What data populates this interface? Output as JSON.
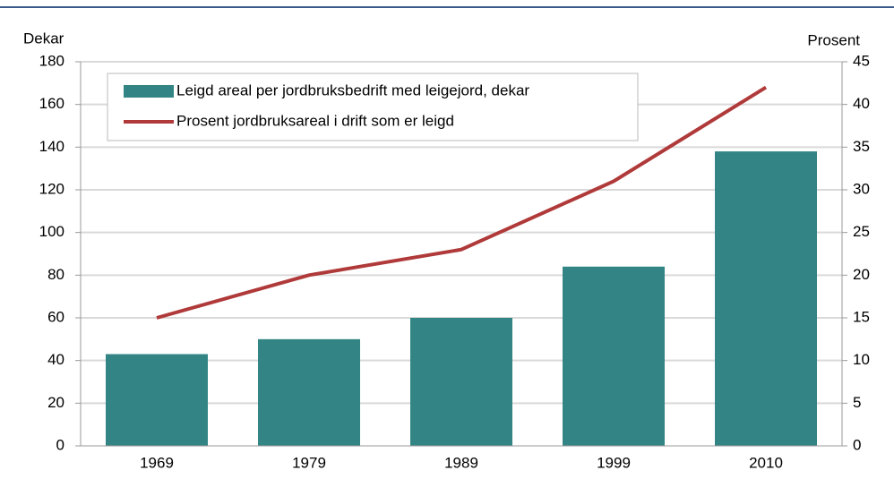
{
  "chart_data": {
    "type": "bar",
    "y_label": "Dekar",
    "y2_label": "Prosent",
    "categories": [
      "1969",
      "1979",
      "1989",
      "1999",
      "2010"
    ],
    "series": [
      {
        "name": "Leigd areal per jordbruksbedrift med leigejord, dekar",
        "type": "bar",
        "color": "#338585",
        "values": [
          43,
          50,
          60,
          84,
          138
        ]
      },
      {
        "name": "Prosent jordbruksareal i drift som er leigd",
        "type": "line",
        "axis": "y2",
        "color": "#b03a3a",
        "values": [
          15,
          20,
          23,
          31,
          42
        ]
      }
    ],
    "ylim": [
      0,
      180
    ],
    "yticks": [
      0,
      20,
      40,
      60,
      80,
      100,
      120,
      140,
      160,
      180
    ],
    "y2lim": [
      0,
      45
    ],
    "y2ticks": [
      0,
      5,
      10,
      15,
      20,
      25,
      30,
      35,
      40,
      45
    ],
    "grid": true,
    "legend": "top-left"
  }
}
